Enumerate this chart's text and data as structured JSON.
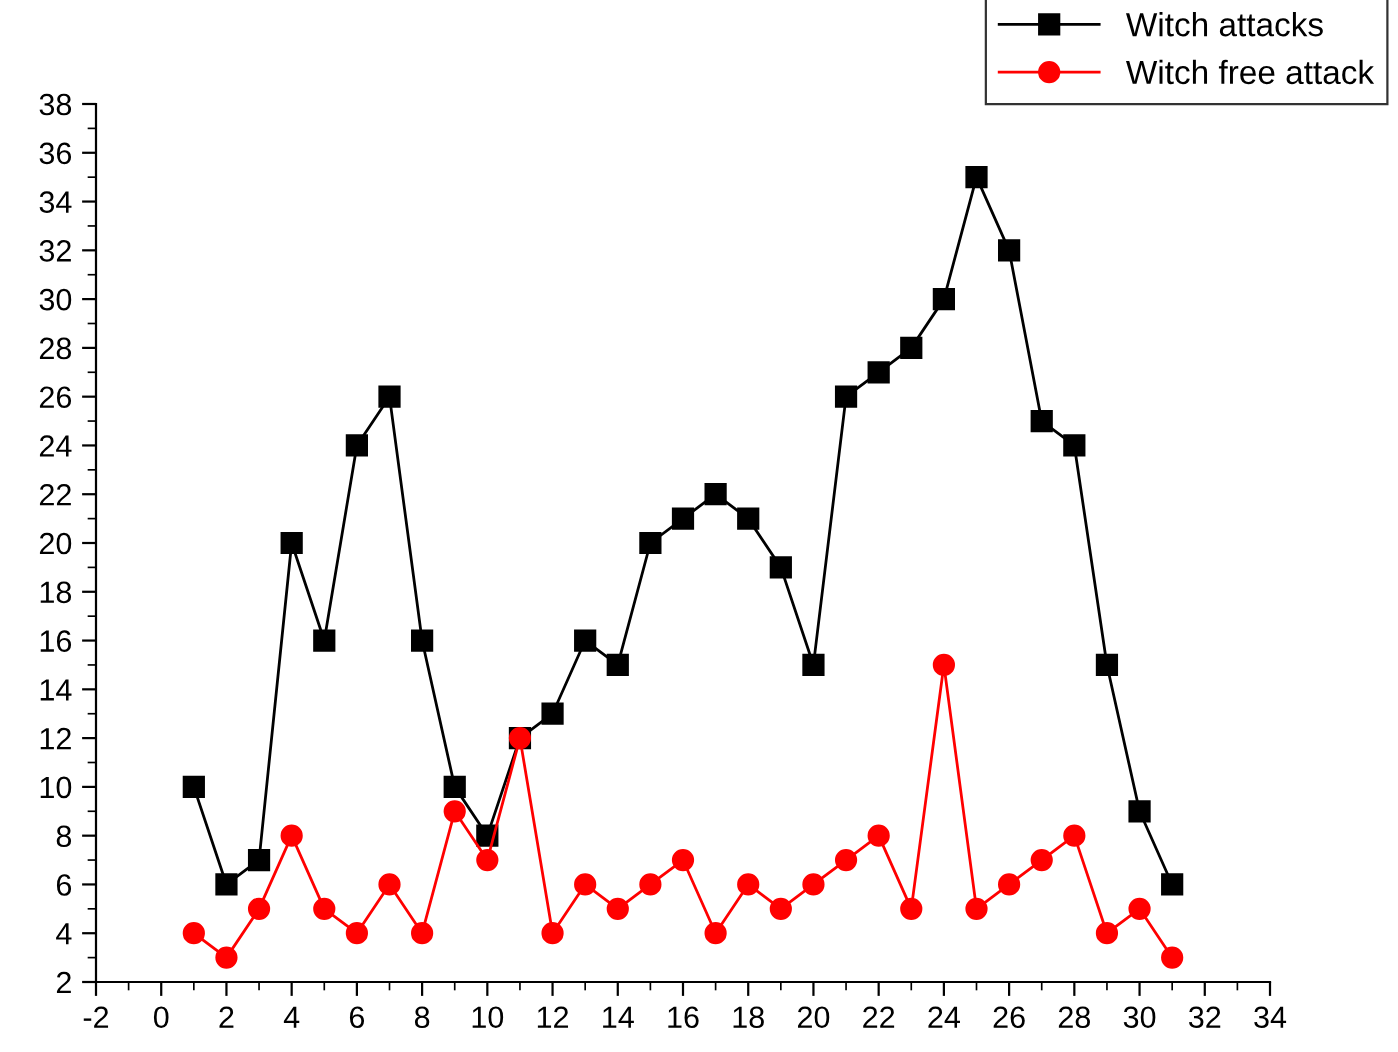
{
  "chart_data": {
    "type": "line",
    "x": [
      1,
      2,
      3,
      4,
      5,
      6,
      7,
      8,
      9,
      10,
      11,
      12,
      13,
      14,
      15,
      16,
      17,
      18,
      19,
      20,
      21,
      22,
      23,
      24,
      25,
      26,
      27,
      28,
      29,
      30,
      31
    ],
    "series": [
      {
        "name": "Witch attacks",
        "color": "#000000",
        "marker": "square",
        "values": [
          10,
          6,
          7,
          20,
          16,
          24,
          26,
          16,
          10,
          8,
          12,
          13,
          16,
          15,
          20,
          21,
          22,
          21,
          19,
          15,
          26,
          27,
          28,
          30,
          35,
          32,
          25,
          24,
          15,
          9,
          6
        ]
      },
      {
        "name": "Witch free attack",
        "color": "#ff0000",
        "marker": "circle",
        "values": [
          4,
          3,
          5,
          8,
          5,
          4,
          6,
          4,
          9,
          7,
          12,
          4,
          6,
          5,
          6,
          7,
          4,
          6,
          5,
          6,
          7,
          8,
          5,
          15,
          5,
          6,
          7,
          8,
          4,
          5,
          3
        ]
      }
    ],
    "xlim": [
      -2,
      34
    ],
    "xticks": [
      -2,
      0,
      2,
      4,
      6,
      8,
      10,
      12,
      14,
      16,
      18,
      20,
      22,
      24,
      26,
      28,
      30,
      32,
      34
    ],
    "ylim": [
      2,
      38
    ],
    "yticks": [
      2,
      4,
      6,
      8,
      10,
      12,
      14,
      16,
      18,
      20,
      22,
      24,
      26,
      28,
      30,
      32,
      34,
      36,
      38
    ],
    "grid": false,
    "legend": "top right",
    "line_style": "solid"
  }
}
